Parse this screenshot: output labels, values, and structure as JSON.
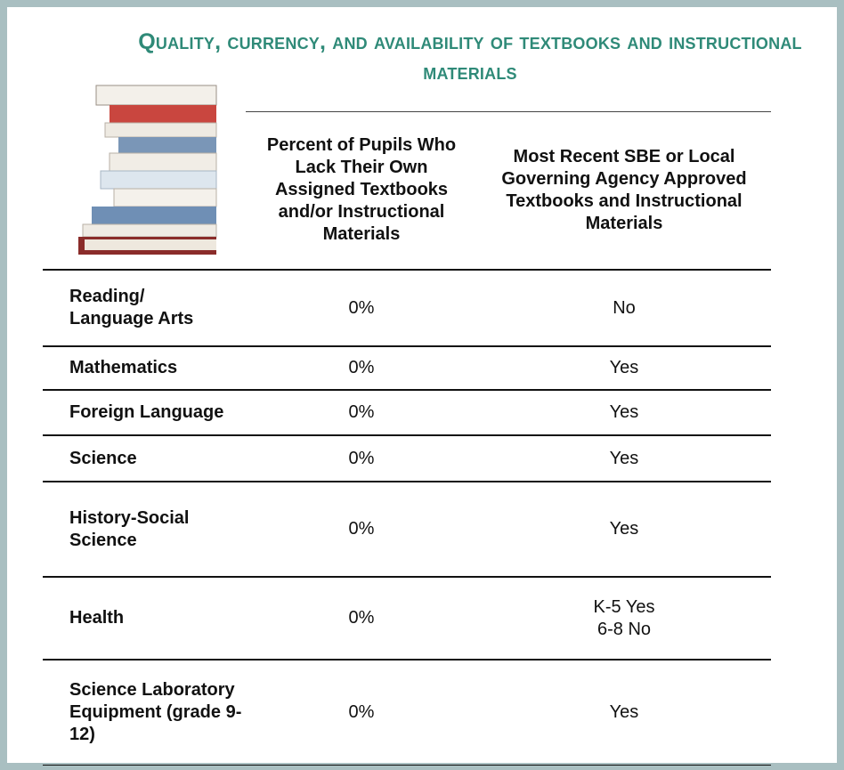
{
  "header": {
    "title": "Quality, currency, and availability of textbooks and instructional materials"
  },
  "table": {
    "columns": [
      "Percent of Pupils Who Lack Their Own Assigned Textbooks and/or Instructional Materials",
      "Most Recent SBE or Local Governing Agency Approved Textbooks and Instructional Materials"
    ],
    "rows": [
      [
        "Reading/\nLanguage Arts",
        "0%",
        "No"
      ],
      [
        "Mathematics",
        "0%",
        "Yes"
      ],
      [
        "Foreign Language",
        "0%",
        "Yes"
      ],
      [
        "Science",
        "0%",
        "Yes"
      ],
      [
        "History-Social\nScience",
        "0%",
        "Yes"
      ],
      [
        "Health",
        "0%",
        "K-5 Yes\n6-8  No"
      ],
      [
        "Science Laboratory Equipment (grade 9-12)",
        "0%",
        "Yes"
      ]
    ]
  }
}
